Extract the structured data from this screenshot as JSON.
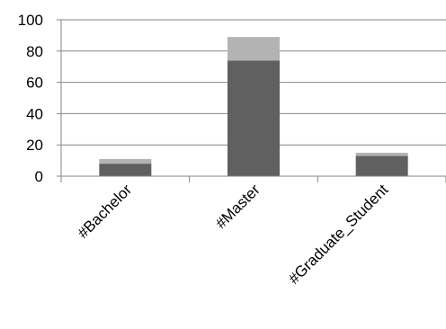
{
  "chart_data": {
    "type": "bar",
    "stacked": true,
    "categories": [
      "#Bachelor",
      "#Master",
      "#Graduate_Student"
    ],
    "series": [
      {
        "values": [
          8,
          74,
          13
        ],
        "color": "#606060"
      },
      {
        "values": [
          3,
          15,
          2
        ],
        "color": "#b3b3b3"
      }
    ],
    "ylim": [
      0,
      100
    ],
    "yticks": [
      0,
      20,
      40,
      60,
      80,
      100
    ],
    "grid": true,
    "title": "",
    "xlabel": "",
    "ylabel": ""
  },
  "colors": {
    "axis": "#868686",
    "grid": "#868686",
    "text": "#000000"
  }
}
